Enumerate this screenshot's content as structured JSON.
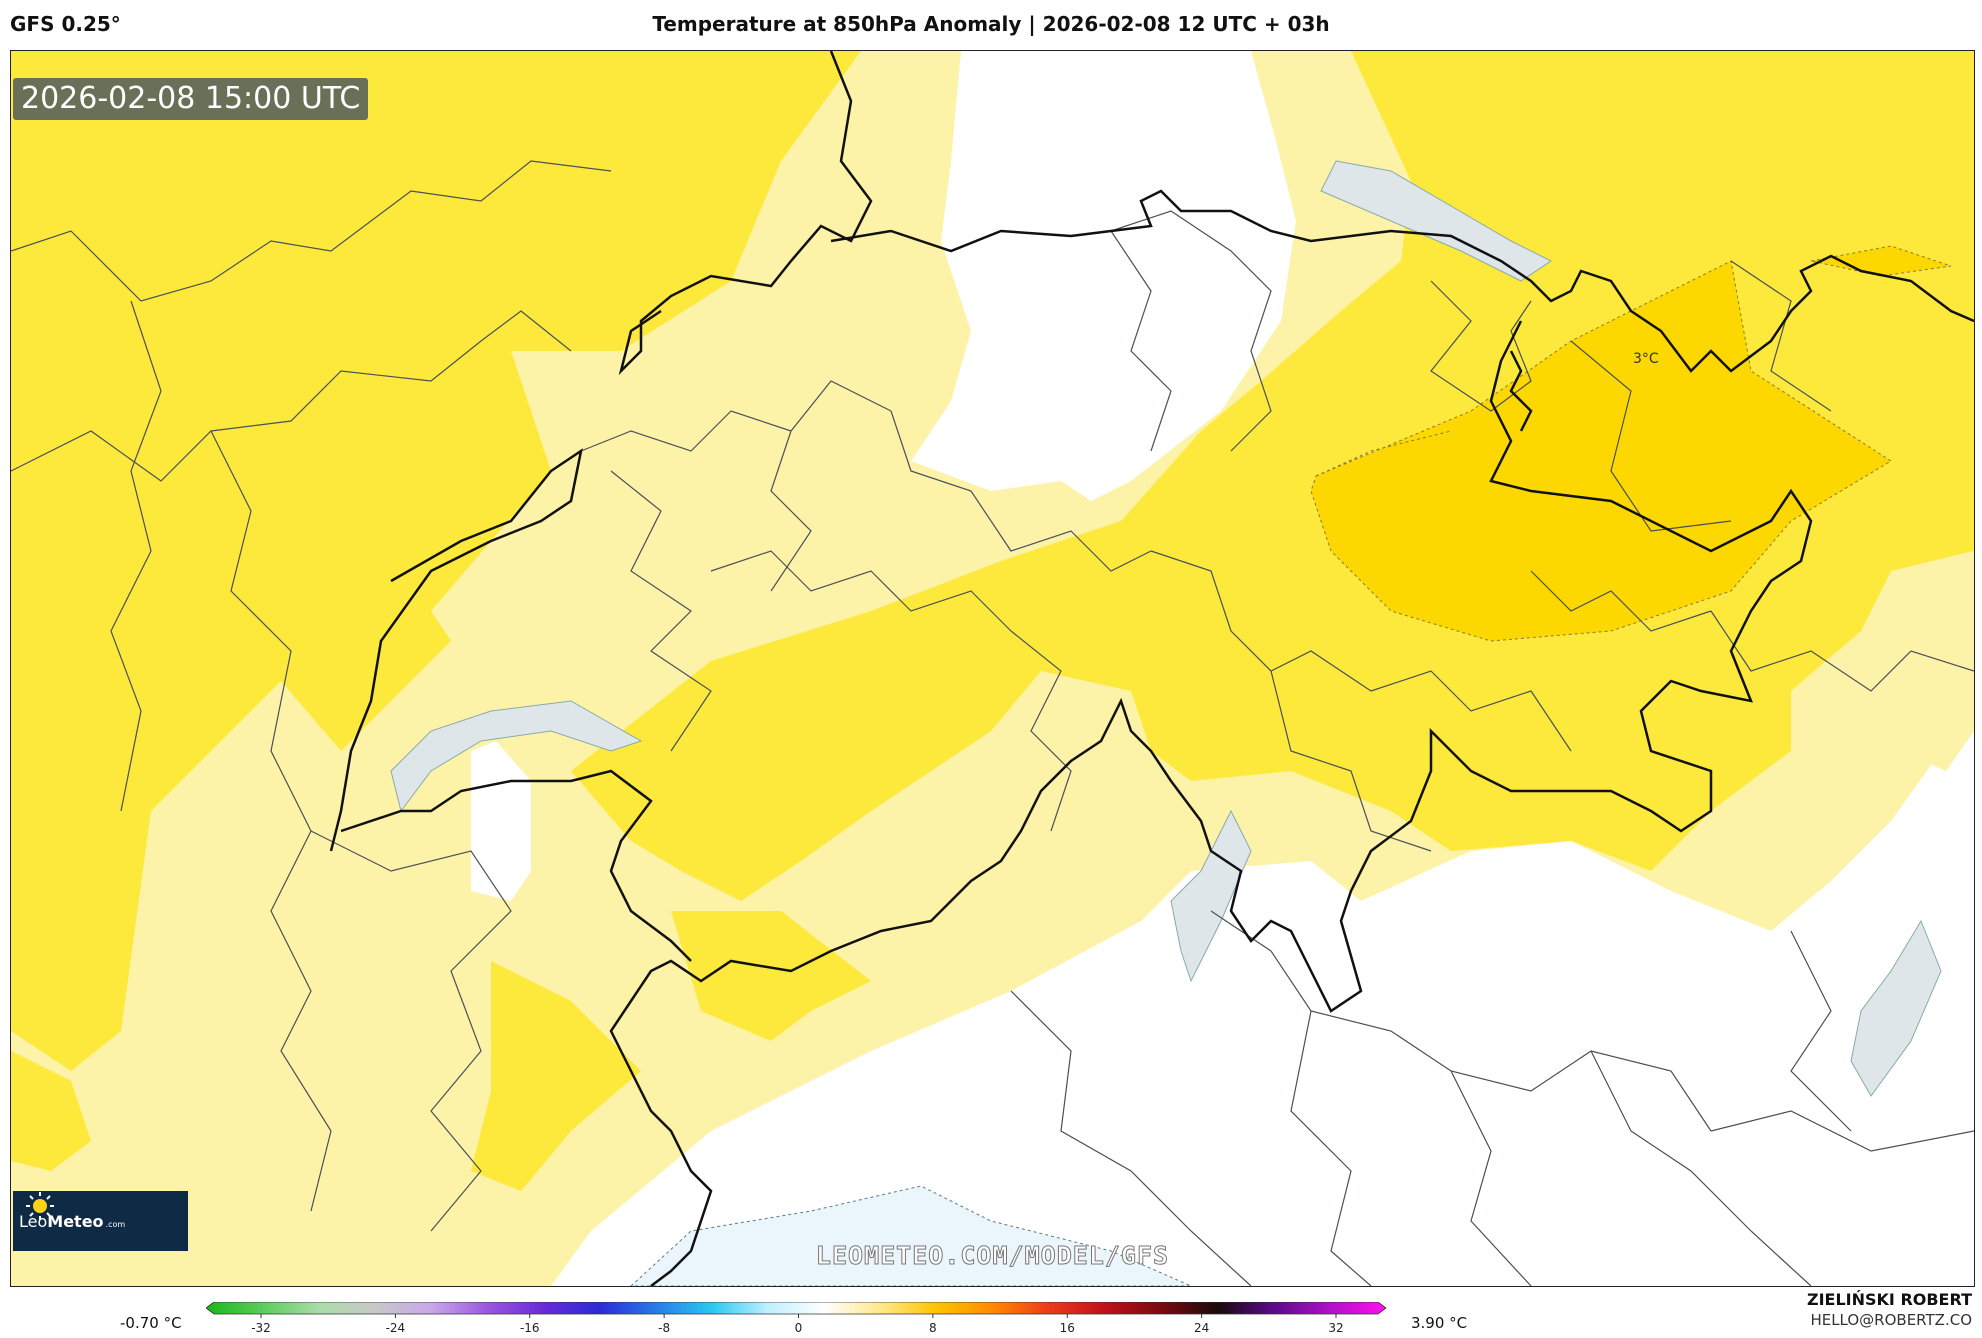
{
  "header": {
    "model": "GFS 0.25°",
    "title": "Temperature at 850hPa Anomaly | 2026-02-08 12 UTC + 03h"
  },
  "map": {
    "valid_time": "2026-02-08 15:00 UTC",
    "contour_label": "3°C",
    "watermark": "LEOMETEO.COM/MODEL/GFS",
    "colors": {
      "pale_yellow": "#fdf3a8",
      "yellow": "#fde93b",
      "gold": "#fcd800",
      "lake": "#dfe6ea",
      "cool": "#eaf6fb"
    }
  },
  "logo": {
    "brand_leo": "Leo",
    "brand_meteo": "Meteo",
    "domain": ".com"
  },
  "colorbar": {
    "min_label": "-0.70 °C",
    "max_label": "3.90 °C",
    "ticks": [
      "-32",
      "-24",
      "-16",
      "-8",
      "0",
      "8",
      "16",
      "24",
      "32"
    ],
    "stops": [
      "#18b818",
      "#5ccc5c",
      "#a8dca8",
      "#c8c8c8",
      "#c8a8e8",
      "#9a58e0",
      "#6a2ad8",
      "#2a2ad8",
      "#2a7ae8",
      "#28c8f0",
      "#bff0ff",
      "#ffffff",
      "#ffe98a",
      "#ffc400",
      "#ff8a00",
      "#ee3a1a",
      "#c0101a",
      "#7a0a10",
      "#1a0a0a",
      "#5a0a8a",
      "#b010c8",
      "#ff10f0"
    ]
  },
  "author": {
    "name": "ZIELIŃSKI ROBERT",
    "email": "HELLO@ROBERTZ.CO"
  }
}
